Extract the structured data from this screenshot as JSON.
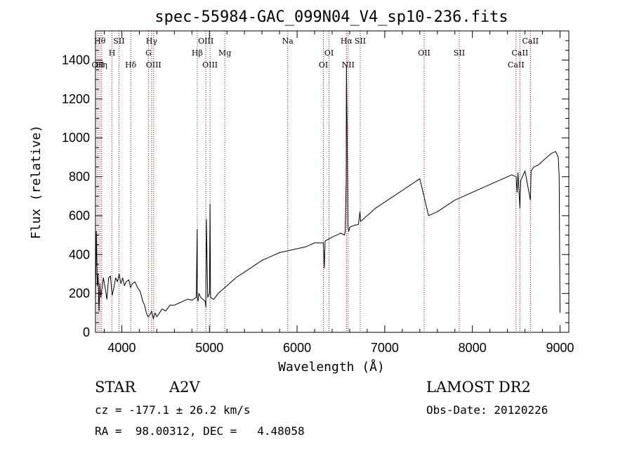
{
  "chart_data": {
    "type": "line",
    "title": "spec-55984-GAC_099N04_V4_sp10-236.fits",
    "xlabel": "Wavelength (Å)",
    "ylabel": "Flux (relative)",
    "xlim": [
      3700,
      9100
    ],
    "ylim": [
      0,
      1550
    ],
    "xticks": [
      4000,
      5000,
      6000,
      7000,
      8000,
      9000
    ],
    "yticks": [
      0,
      200,
      400,
      600,
      800,
      1000,
      1200,
      1400
    ],
    "grid": false,
    "line_color": "#000000",
    "marker_color": "#cc0000",
    "x": [
      3700,
      3710,
      3720,
      3730,
      3740,
      3750,
      3760,
      3770,
      3790,
      3810,
      3830,
      3850,
      3870,
      3890,
      3910,
      3930,
      3950,
      3970,
      3990,
      4010,
      4030,
      4050,
      4080,
      4100,
      4120,
      4150,
      4180,
      4210,
      4240,
      4260,
      4280,
      4300,
      4320,
      4340,
      4360,
      4380,
      4400,
      4430,
      4460,
      4500,
      4550,
      4600,
      4650,
      4700,
      4750,
      4800,
      4850,
      4860,
      4862,
      4870,
      4880,
      4900,
      4950,
      4959,
      4965,
      4980,
      5000,
      5007,
      5012,
      5050,
      5100,
      5200,
      5300,
      5400,
      5500,
      5600,
      5700,
      5800,
      5900,
      6000,
      6100,
      6200,
      6300,
      6310,
      6320,
      6400,
      6500,
      6540,
      6550,
      6560,
      6563,
      6570,
      6580,
      6590,
      6600,
      6650,
      6700,
      6717,
      6725,
      6750,
      6800,
      6900,
      7000,
      7100,
      7200,
      7300,
      7400,
      7500,
      7600,
      7700,
      7800,
      7900,
      8000,
      8100,
      8200,
      8300,
      8400,
      8450,
      8498,
      8510,
      8520,
      8542,
      8550,
      8600,
      8662,
      8670,
      8700,
      8750,
      8800,
      8850,
      8900,
      8950,
      8980,
      8990,
      9000
    ],
    "y": [
      150,
      520,
      240,
      300,
      110,
      250,
      180,
      210,
      280,
      230,
      170,
      280,
      290,
      190,
      230,
      280,
      260,
      300,
      250,
      280,
      240,
      260,
      270,
      230,
      250,
      260,
      230,
      210,
      160,
      140,
      100,
      80,
      90,
      110,
      70,
      100,
      80,
      100,
      120,
      110,
      140,
      140,
      150,
      160,
      170,
      165,
      180,
      530,
      180,
      160,
      200,
      180,
      160,
      130,
      580,
      180,
      200,
      660,
      180,
      170,
      200,
      240,
      280,
      310,
      340,
      370,
      390,
      410,
      420,
      430,
      440,
      460,
      460,
      330,
      470,
      490,
      510,
      500,
      520,
      780,
      1370,
      1080,
      540,
      520,
      540,
      550,
      555,
      620,
      570,
      580,
      600,
      640,
      670,
      700,
      730,
      760,
      790,
      600,
      620,
      650,
      680,
      700,
      720,
      740,
      760,
      780,
      800,
      810,
      800,
      720,
      820,
      640,
      780,
      830,
      680,
      830,
      850,
      860,
      880,
      900,
      920,
      930,
      900,
      800,
      100
    ]
  },
  "line_markers": [
    {
      "wavelength": 3750,
      "label": "Hθ",
      "row": 0
    },
    {
      "wavelength": 3727,
      "label": "OII",
      "row": 2
    },
    {
      "wavelength": 3770,
      "label": "Hη",
      "row": 2
    },
    {
      "wavelength": 3889,
      "label": "H",
      "row": 1
    },
    {
      "wavelength": 3968,
      "label": "SII",
      "row": 0
    },
    {
      "wavelength": 4102,
      "label": "Hδ",
      "row": 2
    },
    {
      "wavelength": 4340,
      "label": "Hγ",
      "row": 0
    },
    {
      "wavelength": 4305,
      "label": "G",
      "row": 1
    },
    {
      "wavelength": 4363,
      "label": "OIII",
      "row": 2
    },
    {
      "wavelength": 4861,
      "label": "Hβ",
      "row": 1
    },
    {
      "wavelength": 4959,
      "label": "OIII",
      "row": 0
    },
    {
      "wavelength": 5007,
      "label": "OIII",
      "row": 2
    },
    {
      "wavelength": 5175,
      "label": "Mg",
      "row": 1
    },
    {
      "wavelength": 5893,
      "label": "Na",
      "row": 0
    },
    {
      "wavelength": 6300,
      "label": "OI",
      "row": 2
    },
    {
      "wavelength": 6364,
      "label": "OI",
      "row": 1
    },
    {
      "wavelength": 6563,
      "label": "Hα",
      "row": 0
    },
    {
      "wavelength": 6583,
      "label": "NII",
      "row": 2
    },
    {
      "wavelength": 6720,
      "label": "SII",
      "row": 0
    },
    {
      "wavelength": 7450,
      "label": "OII",
      "row": 1
    },
    {
      "wavelength": 7850,
      "label": "SII",
      "row": 1
    },
    {
      "wavelength": 8498,
      "label": "CaII",
      "row": 2
    },
    {
      "wavelength": 8542,
      "label": "CaII",
      "row": 1
    },
    {
      "wavelength": 8662,
      "label": "CaII",
      "row": 0
    }
  ],
  "info": {
    "object_class": "STAR",
    "subclass": "A2V",
    "survey": "LAMOST DR2",
    "redshift": "cz = -177.1 ± 26.2 km/s",
    "obs_date": "Obs-Date: 20120226",
    "coords": "RA =  98.00312, DEC =   4.48058"
  }
}
